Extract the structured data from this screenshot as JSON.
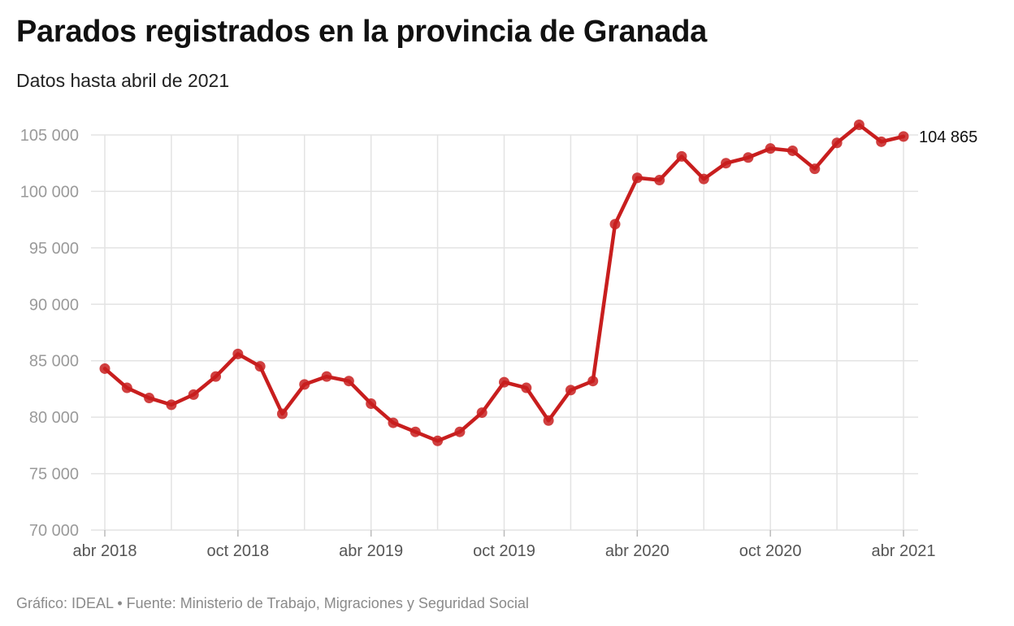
{
  "header": {
    "title": "Parados registrados en la provincia de Granada",
    "subtitle": "Datos hasta abril de 2021"
  },
  "footer": {
    "source": "Gráfico: IDEAL • Fuente: Ministerio de Trabajo, Migraciones y Seguridad Social"
  },
  "colors": {
    "line": "#c81e1e",
    "grid": "#e3e3e3",
    "background": "#ffffff"
  },
  "chart_data": {
    "type": "line",
    "title": "Parados registrados en la provincia de Granada",
    "subtitle": "Datos hasta abril de 2021",
    "xlabel": "",
    "ylabel": "",
    "ylim": [
      70000,
      105000
    ],
    "yticks": [
      70000,
      75000,
      80000,
      85000,
      90000,
      95000,
      100000,
      105000
    ],
    "ytick_labels": [
      "70 000",
      "75 000",
      "80 000",
      "85 000",
      "90 000",
      "95 000",
      "100 000",
      "105 000"
    ],
    "xtick_labels": [
      "abr 2018",
      "oct 2018",
      "abr 2019",
      "oct 2019",
      "abr 2020",
      "oct 2020",
      "abr 2021"
    ],
    "xtick_indices": [
      0,
      6,
      12,
      18,
      24,
      30,
      36
    ],
    "x": [
      "2018-04",
      "2018-05",
      "2018-06",
      "2018-07",
      "2018-08",
      "2018-09",
      "2018-10",
      "2018-11",
      "2018-12",
      "2019-01",
      "2019-02",
      "2019-03",
      "2019-04",
      "2019-05",
      "2019-06",
      "2019-07",
      "2019-08",
      "2019-09",
      "2019-10",
      "2019-11",
      "2019-12",
      "2020-01",
      "2020-02",
      "2020-03",
      "2020-04",
      "2020-05",
      "2020-06",
      "2020-07",
      "2020-08",
      "2020-09",
      "2020-10",
      "2020-11",
      "2020-12",
      "2021-01",
      "2021-02",
      "2021-03",
      "2021-04"
    ],
    "series": [
      {
        "name": "Parados registrados",
        "values": [
          84300,
          82600,
          81700,
          81100,
          82000,
          83600,
          85600,
          84500,
          80300,
          82900,
          83600,
          83200,
          81200,
          79500,
          78700,
          77900,
          78700,
          80400,
          83100,
          82600,
          79700,
          82400,
          83200,
          97100,
          101200,
          101000,
          103100,
          101100,
          102500,
          103000,
          103800,
          103600,
          102000,
          104300,
          105900,
          104400,
          104865
        ]
      }
    ],
    "end_label": "104 865",
    "grid": true,
    "legend": "none"
  }
}
